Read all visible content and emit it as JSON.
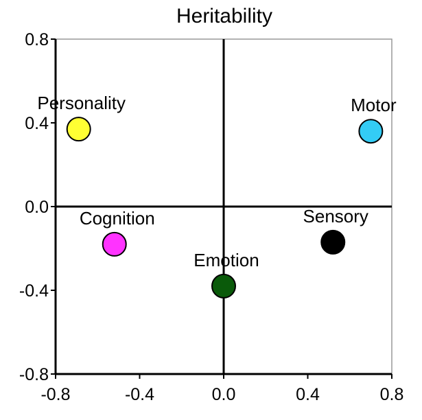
{
  "chart_data": {
    "type": "scatter",
    "title": "Heritability",
    "xlabel": "",
    "ylabel": "",
    "xlim": [
      -0.8,
      0.8
    ],
    "ylim": [
      -0.8,
      0.8
    ],
    "x_ticks": [
      "-0.8",
      "-0.4",
      "0.0",
      "0.4",
      "0.8"
    ],
    "y_ticks": [
      "0.8",
      "0.4",
      "0.0",
      "-0.4",
      "-0.8"
    ],
    "grid": false,
    "legend": "none",
    "points": [
      {
        "label": "Personality",
        "x": -0.69,
        "y": 0.37,
        "color": "#ffff33"
      },
      {
        "label": "Motor",
        "x": 0.7,
        "y": 0.36,
        "color": "#33ccf5"
      },
      {
        "label": "Cognition",
        "x": -0.52,
        "y": -0.18,
        "color": "#ff33ff"
      },
      {
        "label": "Sensory",
        "x": 0.52,
        "y": -0.17,
        "color": "#000000"
      },
      {
        "label": "Emotion",
        "x": 0.0,
        "y": -0.38,
        "color": "#0a5a0a"
      }
    ]
  }
}
